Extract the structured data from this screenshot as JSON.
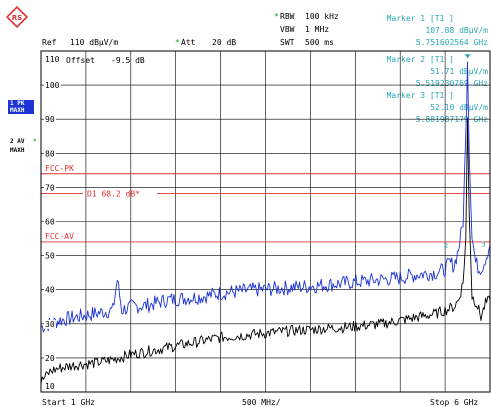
{
  "header": {
    "ref_label": "Ref",
    "ref_value": "110 dBµV/m",
    "att_label": "Att",
    "att_value": "20 dB",
    "rbw_label": "RBW",
    "rbw_value": "100 kHz",
    "vbw_label": "VBW",
    "vbw_value": "1 MHz",
    "swt_label": "SWT",
    "swt_value": "500 ms",
    "offset_label": "Offset",
    "offset_value": "-9.5 dB",
    "star": "*"
  },
  "markers": [
    {
      "title": "Marker 1 [T1 ]",
      "level": "107.88 dBµV/m",
      "freq": "5.751602564 GHz"
    },
    {
      "title": "Marker 2 [T1 ]",
      "level": "51.71 dBµV/m",
      "freq": "5.519230769 GHz"
    },
    {
      "title": "Marker 3 [T1 ]",
      "level": "52.10 dBµV/m",
      "freq": "5.881987179 GHz"
    }
  ],
  "side": {
    "trace1_line1": "1 PK",
    "trace1_line2": "MAXH",
    "trace2_line1": "2 AV",
    "trace2_line2": "MAXH"
  },
  "footer": {
    "start": "Start 1 GHz",
    "span": "500 MHz/",
    "stop": "Stop 6 GHz"
  },
  "chart_data": {
    "type": "line",
    "xlabel": "",
    "ylabel": "",
    "x_unit": "GHz",
    "xlim": [
      1,
      6
    ],
    "ylim": [
      10,
      110
    ],
    "y_ticks": [
      110,
      100,
      90,
      80,
      70,
      60,
      50,
      40,
      30,
      20,
      10
    ],
    "grid": true,
    "limit_lines": [
      {
        "name": "FCC-PK",
        "y": 74
      },
      {
        "name": "FCC-AV",
        "y": 54
      }
    ],
    "display_line": {
      "name": "D1",
      "label": "68.2 dB*",
      "y": 68.2
    },
    "series": [
      {
        "name": "1 PK MAXH",
        "color": "#1c33d6",
        "x": [
          1.0,
          1.2,
          1.4,
          1.6,
          1.8,
          1.85,
          1.9,
          2.0,
          2.2,
          2.4,
          2.6,
          2.8,
          3.0,
          3.2,
          3.4,
          3.6,
          3.8,
          4.0,
          4.2,
          4.4,
          4.6,
          4.8,
          5.0,
          5.2,
          5.4,
          5.5,
          5.55,
          5.6,
          5.65,
          5.7,
          5.73,
          5.75,
          5.77,
          5.8,
          5.84,
          5.88,
          5.92,
          5.96,
          6.0
        ],
        "y": [
          29,
          31,
          32,
          33,
          34,
          43,
          34,
          35,
          35.5,
          37,
          37.5,
          38,
          39,
          39.5,
          40,
          40.3,
          40.7,
          41,
          41.5,
          42,
          42.5,
          43,
          43.5,
          44.5,
          45,
          46,
          48,
          47,
          52,
          60,
          85,
          107.9,
          80,
          56,
          48,
          46,
          47,
          50,
          53
        ]
      },
      {
        "name": "2 AV MAXH",
        "color": "#000000",
        "x": [
          1.0,
          1.1,
          1.2,
          1.4,
          1.6,
          1.8,
          2.0,
          2.2,
          2.4,
          2.6,
          2.8,
          3.0,
          3.2,
          3.4,
          3.6,
          3.8,
          4.0,
          4.2,
          4.4,
          4.6,
          4.8,
          5.0,
          5.2,
          5.4,
          5.5,
          5.6,
          5.65,
          5.7,
          5.73,
          5.75,
          5.77,
          5.8,
          5.85,
          5.9,
          5.95,
          6.0
        ],
        "y": [
          13,
          16,
          17,
          18,
          18.5,
          19.5,
          21,
          22,
          23,
          24,
          25,
          26,
          26.5,
          27,
          27.5,
          28,
          28.3,
          28.7,
          29,
          29.5,
          30,
          31,
          32,
          33,
          34,
          35,
          37,
          42,
          55,
          90,
          62,
          38,
          36,
          32,
          36,
          37
        ]
      }
    ]
  }
}
